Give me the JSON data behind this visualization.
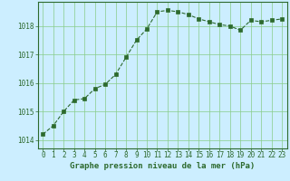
{
  "x": [
    0,
    1,
    2,
    3,
    4,
    5,
    6,
    7,
    8,
    9,
    10,
    11,
    12,
    13,
    14,
    15,
    16,
    17,
    18,
    19,
    20,
    21,
    22,
    23
  ],
  "y": [
    1014.2,
    1014.5,
    1015.0,
    1015.4,
    1015.45,
    1015.8,
    1015.95,
    1016.3,
    1016.9,
    1017.5,
    1017.9,
    1018.5,
    1018.55,
    1018.5,
    1018.4,
    1018.25,
    1018.15,
    1018.05,
    1018.0,
    1017.85,
    1018.2,
    1018.15,
    1018.2,
    1018.25
  ],
  "line_color": "#2d6a2d",
  "marker": "s",
  "markersize": 2.5,
  "linewidth": 0.8,
  "linestyle": "--",
  "bg_color": "#cceeff",
  "grid_color": "#88cc88",
  "xlabel": "Graphe pression niveau de la mer (hPa)",
  "xlabel_color": "#2d6a2d",
  "xlabel_fontsize": 6.5,
  "xtick_labels": [
    "0",
    "1",
    "2",
    "3",
    "4",
    "5",
    "6",
    "7",
    "8",
    "9",
    "10",
    "11",
    "12",
    "13",
    "14",
    "15",
    "16",
    "17",
    "18",
    "19",
    "20",
    "21",
    "22",
    "23"
  ],
  "ytick_labels": [
    "1014",
    "1015",
    "1016",
    "1017",
    "1018"
  ],
  "ytick_values": [
    1014,
    1015,
    1016,
    1017,
    1018
  ],
  "ylim": [
    1013.7,
    1018.85
  ],
  "xlim": [
    -0.5,
    23.5
  ],
  "tick_color": "#2d6a2d",
  "tick_fontsize": 5.5,
  "border_color": "#2d6a2d"
}
